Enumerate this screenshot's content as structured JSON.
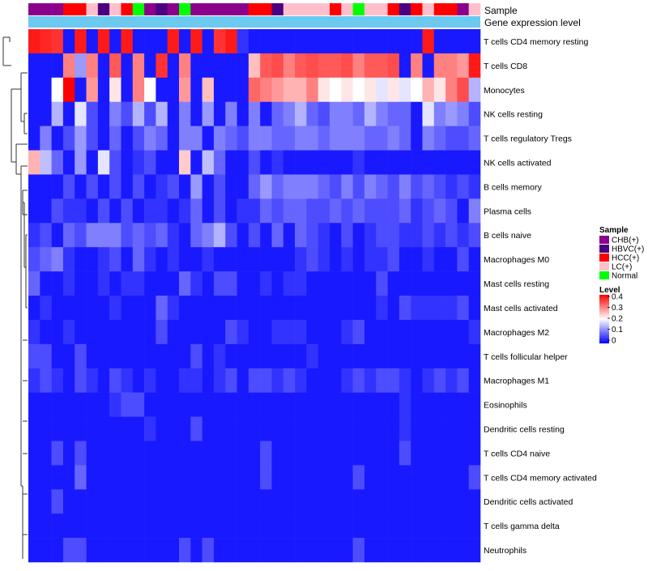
{
  "chart_data": {
    "type": "heatmap",
    "title": "",
    "annotation_labels": [
      "Sample",
      "Gene expression level"
    ],
    "sample_groups": [
      "CHB(+)",
      "CHB(+)",
      "CHB(+)",
      "HCC(+)",
      "HCC(+)",
      "LC(+)",
      "HBVC(+)",
      "LC(+)",
      "HCC(+)",
      "Normal",
      "CHB(+)",
      "HBVC(+)",
      "CHB(+)",
      "Normal",
      "CHB(+)",
      "CHB(+)",
      "CHB(+)",
      "CHB(+)",
      "CHB(+)",
      "HCC(+)",
      "HCC(+)",
      "HBVC(+)",
      "LC(+)",
      "LC(+)",
      "LC(+)",
      "LC(+)",
      "HCC(+)",
      "LC(+)",
      "Normal",
      "LC(+)",
      "LC(+)",
      "HCC(+)",
      "HBVC(+)",
      "HCC(+)",
      "LC(+)",
      "HCC(+)",
      "HCC(+)",
      "CHB(+)",
      "LC(+)"
    ],
    "rows": [
      "T cells CD4 memory resting",
      "T cells CD8",
      "Monocytes",
      "NK cells resting",
      "T cells regulatory  Tregs",
      "NK cells activated",
      "B cells memory",
      "Plasma cells",
      "B cells naive",
      "Macrophages M0",
      "Mast cells resting",
      "Mast cells activated",
      "Macrophages M2",
      "T cells follicular helper",
      "Macrophages M1",
      "Eosinophils",
      "Dendritic cells resting",
      "T cells CD4 naive",
      "T cells CD4 memory activated",
      "Dendritic cells activated",
      "T cells gamma delta",
      "Neutrophils"
    ],
    "values": [
      [
        0.38,
        0.37,
        0.36,
        0.02,
        0.38,
        0.02,
        0.38,
        0.02,
        0.38,
        0.02,
        0.02,
        0.02,
        0.38,
        0.02,
        0.38,
        0.02,
        0.36,
        0.38,
        0.04,
        0.02,
        0.02,
        0.02,
        0.02,
        0.02,
        0.02,
        0.02,
        0.02,
        0.02,
        0.02,
        0.02,
        0.02,
        0.02,
        0.02,
        0.02,
        0.38,
        0.02,
        0.02,
        0.02,
        0.02
      ],
      [
        0.02,
        0.02,
        0.02,
        0.3,
        0.12,
        0.3,
        0.02,
        0.33,
        0.02,
        0.3,
        0.02,
        0.36,
        0.02,
        0.3,
        0.02,
        0.02,
        0.02,
        0.02,
        0.02,
        0.25,
        0.33,
        0.34,
        0.3,
        0.33,
        0.34,
        0.33,
        0.33,
        0.34,
        0.3,
        0.33,
        0.33,
        0.34,
        0.02,
        0.3,
        0.02,
        0.3,
        0.3,
        0.28,
        0.38
      ],
      [
        0.02,
        0.02,
        0.2,
        0.4,
        0.02,
        0.28,
        0.02,
        0.22,
        0.02,
        0.3,
        0.2,
        0.02,
        0.02,
        0.28,
        0.02,
        0.25,
        0.02,
        0.02,
        0.02,
        0.32,
        0.3,
        0.28,
        0.26,
        0.26,
        0.3,
        0.22,
        0.2,
        0.22,
        0.2,
        0.22,
        0.18,
        0.22,
        0.18,
        0.2,
        0.26,
        0.22,
        0.3,
        0.34,
        0.14
      ],
      [
        0.02,
        0.02,
        0.14,
        0.02,
        0.18,
        0.06,
        0.02,
        0.1,
        0.06,
        0.14,
        0.06,
        0.14,
        0.02,
        0.1,
        0.02,
        0.12,
        0.02,
        0.1,
        0.02,
        0.1,
        0.02,
        0.08,
        0.1,
        0.14,
        0.08,
        0.06,
        0.1,
        0.1,
        0.08,
        0.14,
        0.1,
        0.08,
        0.08,
        0.02,
        0.18,
        0.1,
        0.12,
        0.1,
        0.06
      ],
      [
        0.02,
        0.1,
        0.02,
        0.06,
        0.12,
        0.06,
        0.02,
        0.08,
        0.02,
        0.06,
        0.1,
        0.08,
        0.02,
        0.1,
        0.1,
        0.02,
        0.1,
        0.08,
        0.06,
        0.1,
        0.1,
        0.08,
        0.08,
        0.1,
        0.1,
        0.08,
        0.1,
        0.1,
        0.1,
        0.08,
        0.08,
        0.1,
        0.08,
        0.02,
        0.1,
        0.08,
        0.06,
        0.06,
        0.08
      ],
      [
        0.26,
        0.15,
        0.08,
        0.02,
        0.12,
        0.02,
        0.18,
        0.06,
        0.02,
        0.04,
        0.06,
        0.02,
        0.02,
        0.24,
        0.02,
        0.15,
        0.08,
        0.02,
        0.02,
        0.06,
        0.02,
        0.04,
        0.02,
        0.02,
        0.02,
        0.02,
        0.02,
        0.02,
        0.04,
        0.02,
        0.02,
        0.02,
        0.02,
        0.02,
        0.02,
        0.02,
        0.02,
        0.02,
        0.02
      ],
      [
        0.02,
        0.02,
        0.02,
        0.06,
        0.02,
        0.06,
        0.02,
        0.06,
        0.02,
        0.06,
        0.02,
        0.04,
        0.06,
        0.02,
        0.12,
        0.02,
        0.06,
        0.02,
        0.02,
        0.08,
        0.12,
        0.08,
        0.1,
        0.1,
        0.1,
        0.08,
        0.06,
        0.1,
        0.06,
        0.1,
        0.08,
        0.06,
        0.1,
        0.06,
        0.08,
        0.06,
        0.04,
        0.06,
        0.04
      ],
      [
        0.02,
        0.02,
        0.06,
        0.04,
        0.04,
        0.02,
        0.06,
        0.02,
        0.06,
        0.02,
        0.04,
        0.04,
        0.02,
        0.04,
        0.08,
        0.02,
        0.06,
        0.02,
        0.04,
        0.04,
        0.08,
        0.06,
        0.08,
        0.08,
        0.06,
        0.06,
        0.08,
        0.06,
        0.08,
        0.06,
        0.06,
        0.06,
        0.08,
        0.04,
        0.06,
        0.08,
        0.06,
        0.02,
        0.1
      ],
      [
        0.04,
        0.06,
        0.02,
        0.08,
        0.06,
        0.1,
        0.1,
        0.1,
        0.06,
        0.08,
        0.06,
        0.08,
        0.04,
        0.02,
        0.08,
        0.1,
        0.14,
        0.06,
        0.02,
        0.06,
        0.02,
        0.08,
        0.02,
        0.08,
        0.06,
        0.04,
        0.02,
        0.06,
        0.02,
        0.04,
        0.06,
        0.06,
        0.04,
        0.04,
        0.06,
        0.04,
        0.06,
        0.04,
        0.06
      ],
      [
        0.06,
        0.08,
        0.1,
        0.04,
        0.02,
        0.02,
        0.04,
        0.06,
        0.02,
        0.08,
        0.04,
        0.02,
        0.04,
        0.02,
        0.02,
        0.04,
        0.02,
        0.02,
        0.02,
        0.02,
        0.02,
        0.02,
        0.02,
        0.04,
        0.06,
        0.04,
        0.02,
        0.04,
        0.02,
        0.04,
        0.04,
        0.06,
        0.02,
        0.02,
        0.04,
        0.02,
        0.02,
        0.06,
        0.02
      ],
      [
        0.08,
        0.02,
        0.02,
        0.04,
        0.02,
        0.02,
        0.04,
        0.02,
        0.04,
        0.04,
        0.02,
        0.02,
        0.02,
        0.08,
        0.04,
        0.02,
        0.06,
        0.06,
        0.02,
        0.02,
        0.04,
        0.02,
        0.04,
        0.04,
        0.02,
        0.02,
        0.02,
        0.02,
        0.02,
        0.02,
        0.06,
        0.02,
        0.02,
        0.02,
        0.02,
        0.02,
        0.02,
        0.02,
        0.02
      ],
      [
        0.02,
        0.04,
        0.02,
        0.02,
        0.02,
        0.02,
        0.02,
        0.04,
        0.02,
        0.02,
        0.02,
        0.08,
        0.04,
        0.02,
        0.02,
        0.02,
        0.02,
        0.02,
        0.02,
        0.02,
        0.02,
        0.02,
        0.02,
        0.02,
        0.02,
        0.02,
        0.02,
        0.02,
        0.02,
        0.02,
        0.04,
        0.02,
        0.06,
        0.04,
        0.04,
        0.04,
        0.04,
        0.06,
        0.02
      ],
      [
        0.04,
        0.02,
        0.02,
        0.04,
        0.02,
        0.02,
        0.02,
        0.02,
        0.02,
        0.02,
        0.02,
        0.06,
        0.02,
        0.02,
        0.02,
        0.02,
        0.02,
        0.06,
        0.04,
        0.02,
        0.02,
        0.04,
        0.04,
        0.04,
        0.02,
        0.02,
        0.02,
        0.04,
        0.06,
        0.02,
        0.02,
        0.02,
        0.02,
        0.02,
        0.02,
        0.02,
        0.02,
        0.02,
        0.04
      ],
      [
        0.06,
        0.06,
        0.02,
        0.02,
        0.06,
        0.02,
        0.02,
        0.02,
        0.02,
        0.02,
        0.02,
        0.02,
        0.02,
        0.02,
        0.06,
        0.02,
        0.04,
        0.02,
        0.02,
        0.02,
        0.02,
        0.02,
        0.02,
        0.02,
        0.04,
        0.02,
        0.02,
        0.02,
        0.02,
        0.02,
        0.02,
        0.02,
        0.02,
        0.02,
        0.02,
        0.02,
        0.02,
        0.02,
        0.02
      ],
      [
        0.04,
        0.06,
        0.04,
        0.02,
        0.06,
        0.04,
        0.02,
        0.06,
        0.04,
        0.02,
        0.04,
        0.02,
        0.02,
        0.04,
        0.04,
        0.02,
        0.04,
        0.06,
        0.02,
        0.06,
        0.06,
        0.04,
        0.06,
        0.04,
        0.02,
        0.02,
        0.02,
        0.04,
        0.06,
        0.04,
        0.06,
        0.06,
        0.04,
        0.02,
        0.04,
        0.06,
        0.04,
        0.06,
        0.02
      ],
      [
        0.02,
        0.02,
        0.02,
        0.02,
        0.02,
        0.02,
        0.02,
        0.04,
        0.06,
        0.06,
        0.02,
        0.02,
        0.02,
        0.02,
        0.02,
        0.02,
        0.02,
        0.02,
        0.02,
        0.02,
        0.02,
        0.02,
        0.02,
        0.02,
        0.02,
        0.02,
        0.02,
        0.02,
        0.02,
        0.02,
        0.02,
        0.02,
        0.04,
        0.02,
        0.02,
        0.02,
        0.02,
        0.02,
        0.02
      ],
      [
        0.02,
        0.02,
        0.02,
        0.02,
        0.02,
        0.02,
        0.02,
        0.02,
        0.02,
        0.02,
        0.04,
        0.02,
        0.02,
        0.02,
        0.06,
        0.02,
        0.02,
        0.02,
        0.02,
        0.02,
        0.02,
        0.02,
        0.02,
        0.02,
        0.02,
        0.02,
        0.02,
        0.02,
        0.02,
        0.02,
        0.02,
        0.02,
        0.04,
        0.02,
        0.02,
        0.02,
        0.02,
        0.02,
        0.02
      ],
      [
        0.02,
        0.02,
        0.06,
        0.02,
        0.06,
        0.02,
        0.02,
        0.02,
        0.02,
        0.02,
        0.02,
        0.02,
        0.02,
        0.02,
        0.02,
        0.02,
        0.02,
        0.02,
        0.02,
        0.02,
        0.06,
        0.02,
        0.02,
        0.02,
        0.02,
        0.02,
        0.02,
        0.02,
        0.02,
        0.02,
        0.02,
        0.02,
        0.06,
        0.02,
        0.02,
        0.02,
        0.02,
        0.02,
        0.02
      ],
      [
        0.02,
        0.02,
        0.02,
        0.02,
        0.08,
        0.02,
        0.02,
        0.02,
        0.02,
        0.02,
        0.02,
        0.02,
        0.02,
        0.02,
        0.02,
        0.02,
        0.02,
        0.02,
        0.02,
        0.02,
        0.06,
        0.02,
        0.02,
        0.02,
        0.02,
        0.02,
        0.02,
        0.02,
        0.06,
        0.02,
        0.02,
        0.02,
        0.02,
        0.02,
        0.02,
        0.02,
        0.02,
        0.02,
        0.06
      ],
      [
        0.02,
        0.02,
        0.06,
        0.02,
        0.02,
        0.02,
        0.02,
        0.02,
        0.02,
        0.02,
        0.02,
        0.02,
        0.02,
        0.02,
        0.02,
        0.02,
        0.02,
        0.02,
        0.02,
        0.02,
        0.02,
        0.02,
        0.02,
        0.02,
        0.02,
        0.02,
        0.02,
        0.02,
        0.02,
        0.02,
        0.02,
        0.02,
        0.02,
        0.02,
        0.02,
        0.02,
        0.02,
        0.02,
        0.02
      ],
      [
        0.02,
        0.02,
        0.02,
        0.02,
        0.02,
        0.02,
        0.02,
        0.02,
        0.02,
        0.02,
        0.02,
        0.02,
        0.02,
        0.02,
        0.02,
        0.02,
        0.02,
        0.02,
        0.02,
        0.02,
        0.02,
        0.02,
        0.02,
        0.02,
        0.02,
        0.02,
        0.02,
        0.02,
        0.02,
        0.02,
        0.02,
        0.02,
        0.02,
        0.02,
        0.02,
        0.02,
        0.02,
        0.02,
        0.02
      ],
      [
        0.02,
        0.02,
        0.02,
        0.06,
        0.06,
        0.02,
        0.02,
        0.02,
        0.02,
        0.02,
        0.02,
        0.02,
        0.02,
        0.06,
        0.02,
        0.06,
        0.02,
        0.02,
        0.02,
        0.02,
        0.02,
        0.02,
        0.02,
        0.02,
        0.02,
        0.02,
        0.02,
        0.02,
        0.06,
        0.02,
        0.02,
        0.02,
        0.02,
        0.02,
        0.02,
        0.02,
        0.02,
        0.02,
        0.02
      ]
    ],
    "color_scale": {
      "min": 0,
      "max": 0.4,
      "low": "#0000ff",
      "mid": "#ffffff",
      "high": "#ff0000",
      "mid_value": 0.2
    },
    "legend": {
      "sample_title": "Sample",
      "sample_entries": [
        {
          "label": "CHB(+)",
          "color": "#8b008b"
        },
        {
          "label": "HBVC(+)",
          "color": "#4b0082"
        },
        {
          "label": "HCC(+)",
          "color": "#ff0000"
        },
        {
          "label": "LC(+)",
          "color": "#ffc0cb"
        },
        {
          "label": "Normal",
          "color": "#00ff00"
        }
      ],
      "level_title": "Level",
      "level_ticks": [
        "0.4",
        "0.3",
        "0.2",
        "0.1",
        "0"
      ],
      "expression_bar_color": "#6cc9ef"
    },
    "xlabel": "",
    "ylabel": ""
  }
}
